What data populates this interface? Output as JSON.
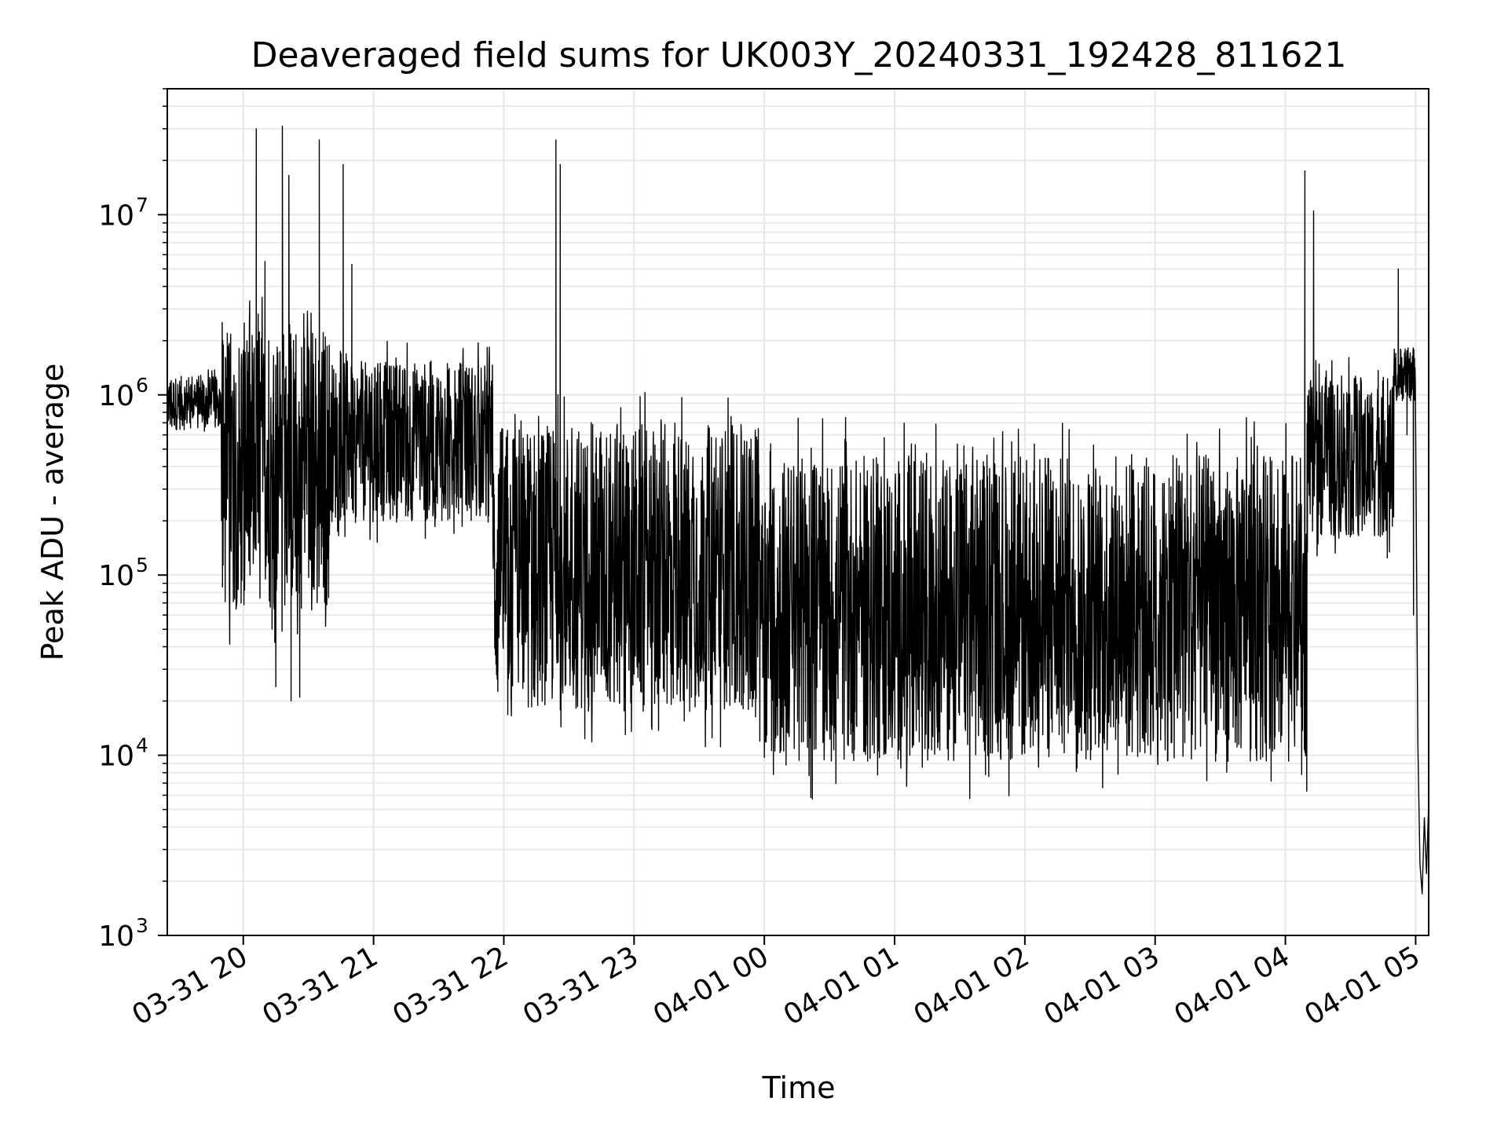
{
  "chart_data": {
    "type": "line",
    "title": "Deaveraged field sums for UK003Y_20240331_192428_811621",
    "xlabel": "Time",
    "ylabel": "Peak ADU - average",
    "yscale": "log",
    "ylim": [
      1000,
      50000000
    ],
    "xlim": [
      "2024-03-31 19:25",
      "2024-04-01 05:06"
    ],
    "grid": true,
    "line_color": "#000000",
    "grid_color": "#e6e6e6",
    "x_ticks": [
      {
        "t": "2024-03-31 20:00",
        "label": "03-31 20"
      },
      {
        "t": "2024-03-31 21:00",
        "label": "03-31 21"
      },
      {
        "t": "2024-03-31 22:00",
        "label": "03-31 22"
      },
      {
        "t": "2024-03-31 23:00",
        "label": "03-31 23"
      },
      {
        "t": "2024-04-01 00:00",
        "label": "04-01 00"
      },
      {
        "t": "2024-04-01 01:00",
        "label": "04-01 01"
      },
      {
        "t": "2024-04-01 02:00",
        "label": "04-01 02"
      },
      {
        "t": "2024-04-01 03:00",
        "label": "04-01 03"
      },
      {
        "t": "2024-04-01 04:00",
        "label": "04-01 04"
      },
      {
        "t": "2024-04-01 05:00",
        "label": "04-01 05"
      }
    ],
    "y_ticks": [
      {
        "value": 1000,
        "base": "10",
        "exp": "3"
      },
      {
        "value": 10000,
        "base": "10",
        "exp": "4"
      },
      {
        "value": 100000,
        "base": "10",
        "exp": "5"
      },
      {
        "value": 1000000,
        "base": "10",
        "exp": "6"
      },
      {
        "value": 10000000,
        "base": "10",
        "exp": "7"
      }
    ],
    "series": [
      {
        "style": "dense-noisy-trace",
        "segments": [
          {
            "t0": "2024-03-31 19:25",
            "t1": "2024-03-31 19:50",
            "center": 900000,
            "spread_dex": 0.15
          },
          {
            "t0": "2024-03-31 19:50",
            "t1": "2024-03-31 20:40",
            "center": 400000,
            "spread_dex": 0.8
          },
          {
            "t0": "2024-03-31 20:40",
            "t1": "2024-03-31 21:55",
            "center": 550000,
            "spread_dex": 0.45
          },
          {
            "t0": "2024-03-31 21:55",
            "t1": "2024-04-01 00:00",
            "center": 110000,
            "spread_dex": 0.8
          },
          {
            "t0": "2024-04-01 00:00",
            "t1": "2024-04-01 04:10",
            "center": 65000,
            "spread_dex": 0.85
          },
          {
            "t0": "2024-04-01 04:10",
            "t1": "2024-04-01 04:50",
            "center": 450000,
            "spread_dex": 0.45
          },
          {
            "t0": "2024-04-01 04:50",
            "t1": "2024-04-01 05:00",
            "center": 1300000,
            "spread_dex": 0.15
          }
        ],
        "spikes": [
          {
            "t": "2024-03-31 20:06",
            "value": 30000000
          },
          {
            "t": "2024-03-31 20:10",
            "value": 5500000
          },
          {
            "t": "2024-03-31 20:18",
            "value": 31000000
          },
          {
            "t": "2024-03-31 20:21",
            "value": 16500000
          },
          {
            "t": "2024-03-31 20:35",
            "value": 26000000
          },
          {
            "t": "2024-03-31 20:46",
            "value": 19000000
          },
          {
            "t": "2024-03-31 20:50",
            "value": 5300000
          },
          {
            "t": "2024-03-31 22:24",
            "value": 26000000
          },
          {
            "t": "2024-03-31 22:26",
            "value": 19000000
          },
          {
            "t": "2024-04-01 04:09",
            "value": 17500000
          },
          {
            "t": "2024-04-01 04:13",
            "value": 10500000
          },
          {
            "t": "2024-04-01 04:52",
            "value": 5000000
          }
        ],
        "dips": [
          {
            "t": "2024-03-31 19:59",
            "value": 70000
          },
          {
            "t": "2024-03-31 20:15",
            "value": 24000
          },
          {
            "t": "2024-03-31 20:22",
            "value": 20000
          },
          {
            "t": "2024-03-31 20:26",
            "value": 21000
          },
          {
            "t": "2024-03-31 22:56",
            "value": 13000
          },
          {
            "t": "2024-04-01 01:07",
            "value": 10000
          },
          {
            "t": "2024-04-01 02:24",
            "value": 8500
          },
          {
            "t": "2024-04-01 02:47",
            "value": 10000
          }
        ],
        "tail": [
          {
            "t": "2024-04-01 04:55",
            "value": 1300000
          },
          {
            "t": "2024-04-01 04:56",
            "value": 600000
          },
          {
            "t": "2024-04-01 04:59",
            "value": 60000
          },
          {
            "t": "2024-04-01 05:01",
            "value": 12000
          },
          {
            "t": "2024-04-01 05:02",
            "value": 2500
          },
          {
            "t": "2024-04-01 05:03",
            "value": 1700
          },
          {
            "t": "2024-04-01 05:04",
            "value": 4500
          },
          {
            "t": "2024-04-01 05:05",
            "value": 2200
          },
          {
            "t": "2024-04-01 05:06",
            "value": 5500
          }
        ]
      }
    ]
  }
}
